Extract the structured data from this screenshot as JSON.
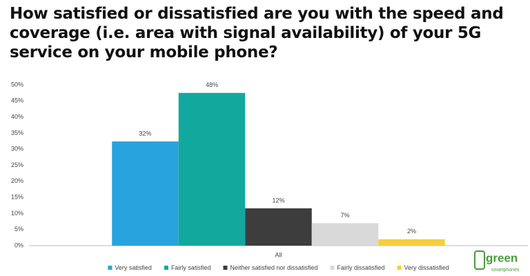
{
  "chart_data": {
    "type": "bar",
    "title": "How satisfied or dissatisfied are you with the speed and coverage (i.e. area with signal availability) of your 5G service on your mobile phone?",
    "categories": [
      "All"
    ],
    "series": [
      {
        "name": "Very satisfied",
        "color": "#29a3dd",
        "values": [
          32.4
        ],
        "value_labels": [
          "32%"
        ]
      },
      {
        "name": "Fairly satisfied",
        "color": "#13a89e",
        "values": [
          47.5
        ],
        "value_labels": [
          "48%"
        ]
      },
      {
        "name": "Neither satisfied nor dissatisfied",
        "color": "#3d3d3d",
        "values": [
          11.6
        ],
        "value_labels": [
          "12%"
        ]
      },
      {
        "name": "Fairly dissatisfied",
        "color": "#d9d9d9",
        "values": [
          7
        ],
        "value_labels": [
          "7%"
        ]
      },
      {
        "name": "Very dissatisfied",
        "color": "#f5cf3b",
        "values": [
          2
        ],
        "value_labels": [
          "2%"
        ]
      }
    ],
    "ylim": [
      0,
      50
    ],
    "yticks": [
      {
        "value": 0,
        "label": "0%"
      },
      {
        "value": 5,
        "label": "5%"
      },
      {
        "value": 10,
        "label": "10%"
      },
      {
        "value": 15,
        "label": "15%"
      },
      {
        "value": 20,
        "label": "20%"
      },
      {
        "value": 25,
        "label": "25%"
      },
      {
        "value": 30,
        "label": "30%"
      },
      {
        "value": 35,
        "label": "35%"
      },
      {
        "value": 40,
        "label": "40%"
      },
      {
        "value": 45,
        "label": "45%"
      },
      {
        "value": 50,
        "label": "50%"
      }
    ],
    "grid": false,
    "legend": "bottom"
  },
  "logo": {
    "name": "green",
    "tagline": "smartphones"
  }
}
